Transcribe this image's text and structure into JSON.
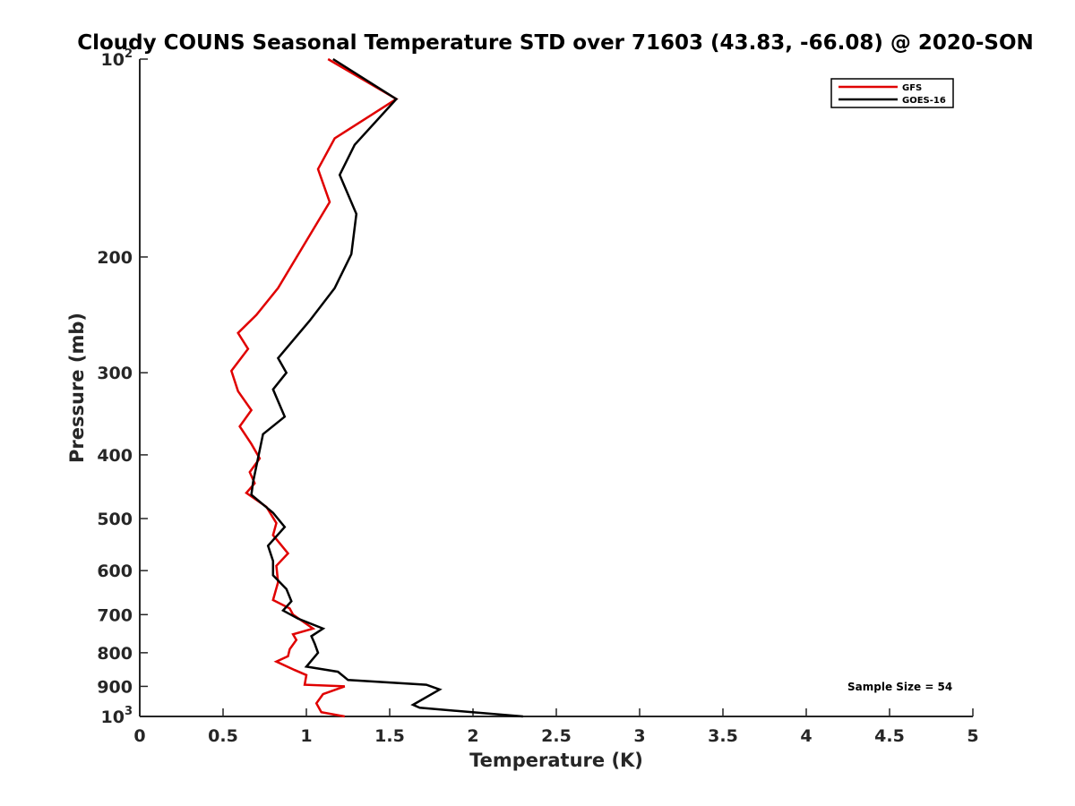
{
  "chart_data": {
    "type": "line",
    "title": "Cloudy COUNS Seasonal Temperature STD over 71603 (43.83, -66.08) @ 2020-SON",
    "xlabel": "Temperature (K)",
    "ylabel": "Pressure (mb)",
    "xlim": [
      0,
      5
    ],
    "ylim": [
      100,
      1000
    ],
    "yscale": "log",
    "yreverse": true,
    "x_ticks": [
      0,
      0.5,
      1,
      1.5,
      2,
      2.5,
      3,
      3.5,
      4,
      4.5,
      5
    ],
    "x_tick_labels": [
      "0",
      "0.5",
      "1",
      "1.5",
      "2",
      "2.5",
      "3",
      "3.5",
      "4",
      "4.5",
      "5"
    ],
    "y_ticks": [
      100,
      200,
      300,
      400,
      500,
      600,
      700,
      800,
      900,
      1000
    ],
    "y_tick_labels": [
      {
        "base": "10",
        "exp": "2"
      },
      {
        "base": "200",
        "exp": ""
      },
      {
        "base": "300",
        "exp": ""
      },
      {
        "base": "400",
        "exp": ""
      },
      {
        "base": "500",
        "exp": ""
      },
      {
        "base": "600",
        "exp": ""
      },
      {
        "base": "700",
        "exp": ""
      },
      {
        "base": "800",
        "exp": ""
      },
      {
        "base": "900",
        "exp": ""
      },
      {
        "base": "10",
        "exp": "3"
      }
    ],
    "legend_position": "top-right",
    "annotation": "Sample Size = 54",
    "series": [
      {
        "name": "GFS",
        "color": "#e00000",
        "points": [
          [
            1.13,
            100
          ],
          [
            1.54,
            115
          ],
          [
            1.17,
            132
          ],
          [
            1.07,
            147
          ],
          [
            1.14,
            165
          ],
          [
            0.83,
            223
          ],
          [
            0.7,
            245
          ],
          [
            0.59,
            261
          ],
          [
            0.65,
            276
          ],
          [
            0.55,
            298
          ],
          [
            0.59,
            320
          ],
          [
            0.67,
            342
          ],
          [
            0.6,
            362
          ],
          [
            0.67,
            385
          ],
          [
            0.72,
            405
          ],
          [
            0.66,
            425
          ],
          [
            0.69,
            442
          ],
          [
            0.64,
            457
          ],
          [
            0.76,
            480
          ],
          [
            0.82,
            508
          ],
          [
            0.8,
            530
          ],
          [
            0.89,
            565
          ],
          [
            0.82,
            590
          ],
          [
            0.83,
            625
          ],
          [
            0.8,
            665
          ],
          [
            0.9,
            685
          ],
          [
            0.92,
            700
          ],
          [
            1.04,
            735
          ],
          [
            0.92,
            750
          ],
          [
            0.94,
            765
          ],
          [
            0.9,
            790
          ],
          [
            0.89,
            810
          ],
          [
            0.82,
            825
          ],
          [
            0.93,
            850
          ],
          [
            1.0,
            865
          ],
          [
            0.99,
            895
          ],
          [
            1.23,
            900
          ],
          [
            1.1,
            925
          ],
          [
            1.06,
            955
          ],
          [
            1.09,
            985
          ],
          [
            1.23,
            1000
          ]
        ]
      },
      {
        "name": "GOES-16",
        "color": "#000000",
        "points": [
          [
            1.16,
            100
          ],
          [
            1.54,
            115
          ],
          [
            1.29,
            135
          ],
          [
            1.2,
            150
          ],
          [
            1.3,
            172
          ],
          [
            1.27,
            198
          ],
          [
            1.17,
            223
          ],
          [
            1.02,
            250
          ],
          [
            0.83,
            285
          ],
          [
            0.88,
            300
          ],
          [
            0.8,
            318
          ],
          [
            0.87,
            350
          ],
          [
            0.74,
            372
          ],
          [
            0.68,
            440
          ],
          [
            0.67,
            460
          ],
          [
            0.8,
            490
          ],
          [
            0.87,
            515
          ],
          [
            0.77,
            550
          ],
          [
            0.8,
            580
          ],
          [
            0.8,
            610
          ],
          [
            0.88,
            640
          ],
          [
            0.91,
            668
          ],
          [
            0.86,
            690
          ],
          [
            0.95,
            710
          ],
          [
            1.1,
            735
          ],
          [
            1.03,
            755
          ],
          [
            1.05,
            775
          ],
          [
            1.07,
            800
          ],
          [
            1.0,
            840
          ],
          [
            1.19,
            855
          ],
          [
            1.25,
            880
          ],
          [
            1.72,
            895
          ],
          [
            1.8,
            910
          ],
          [
            1.64,
            960
          ],
          [
            1.68,
            970
          ],
          [
            2.3,
            1000
          ]
        ]
      }
    ]
  }
}
